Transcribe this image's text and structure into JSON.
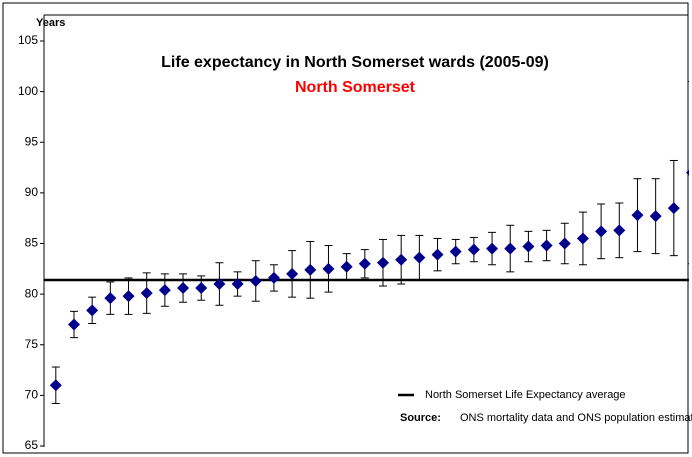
{
  "chart_data": {
    "type": "scatter",
    "title": "Life expectancy in North Somerset wards (2005-09)",
    "subtitle": "North Somerset",
    "y_label": "Years",
    "x": [
      1,
      2,
      3,
      4,
      5,
      6,
      7,
      8,
      9,
      10,
      11,
      12,
      13,
      14,
      15,
      16,
      17,
      18,
      19,
      20,
      21,
      22,
      23,
      24,
      25,
      26,
      27,
      28,
      29,
      30,
      31,
      32,
      33,
      34,
      35,
      36
    ],
    "values": [
      71.0,
      77.0,
      78.4,
      79.6,
      79.8,
      80.1,
      80.4,
      80.6,
      80.6,
      81.0,
      81.0,
      81.3,
      81.6,
      82.0,
      82.4,
      82.5,
      82.7,
      83.0,
      83.1,
      83.4,
      83.6,
      83.9,
      84.2,
      84.4,
      84.5,
      84.5,
      84.7,
      84.8,
      85.0,
      85.5,
      86.2,
      86.3,
      87.8,
      87.7,
      88.5,
      92.0
    ],
    "errors": [
      1.8,
      1.3,
      1.3,
      1.6,
      1.8,
      2.0,
      1.6,
      1.4,
      1.2,
      2.1,
      1.2,
      2.0,
      1.3,
      2.3,
      2.8,
      2.3,
      1.3,
      1.4,
      2.3,
      2.4,
      2.2,
      1.6,
      1.2,
      1.2,
      1.6,
      2.3,
      1.5,
      1.5,
      2.0,
      2.6,
      2.7,
      2.7,
      3.6,
      3.7,
      4.7,
      9.0
    ],
    "color": "#00008b",
    "average": {
      "name": "North Somerset Life Expectancy average",
      "value": 81.4,
      "color": "#000000"
    },
    "source_label": "Source:",
    "source": "ONS mortality data and ONS population estimates",
    "xlim": [
      0.35,
      36.0
    ],
    "ylim": [
      65,
      105
    ],
    "yticks": [
      65,
      70,
      75,
      80,
      85,
      90,
      95,
      100,
      105
    ]
  }
}
